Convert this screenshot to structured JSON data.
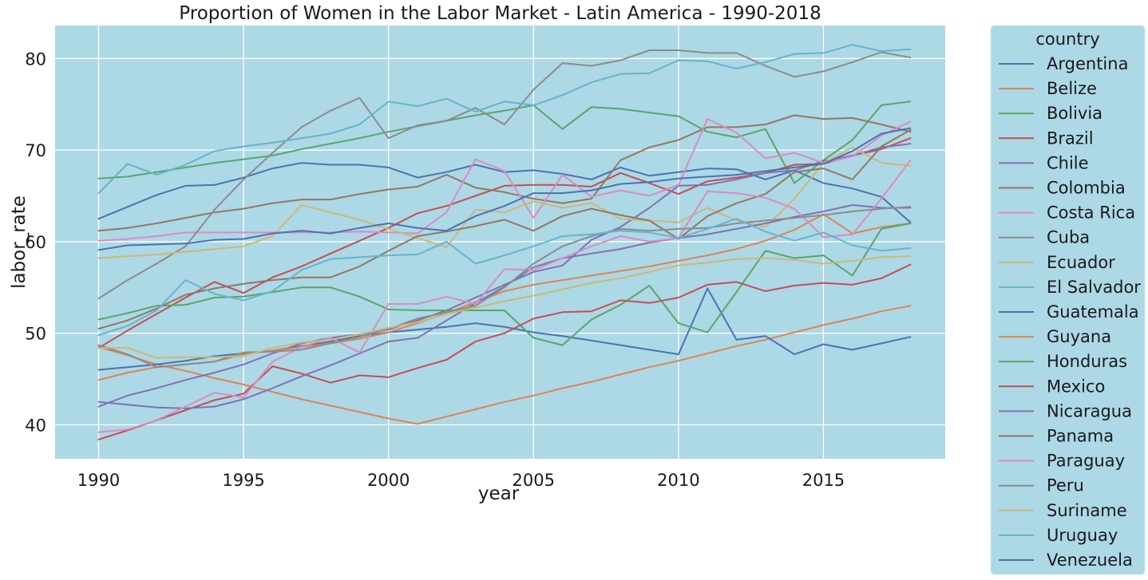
{
  "chart_data": {
    "type": "line",
    "title": "Proportion of Women in the Labor Market - Latin America - 1990-2018",
    "xlabel": "year",
    "ylabel": "labor_rate",
    "xlim": [
      1988.5,
      2019.2
    ],
    "ylim": [
      36.3,
      83.6
    ],
    "x_ticks": [
      1990,
      1995,
      2000,
      2005,
      2010,
      2015
    ],
    "y_ticks": [
      40,
      50,
      60,
      70,
      80
    ],
    "grid": true,
    "background": "#add8e6",
    "legend": {
      "title": "country",
      "position": "outside-right"
    },
    "x": [
      1990,
      1991,
      1992,
      1993,
      1994,
      1995,
      1996,
      1997,
      1998,
      1999,
      2000,
      2001,
      2002,
      2003,
      2004,
      2005,
      2006,
      2007,
      2008,
      2009,
      2010,
      2011,
      2012,
      2013,
      2014,
      2015,
      2016,
      2017,
      2018
    ],
    "series": [
      {
        "name": "Argentina",
        "color": "#4c72b0",
        "values": [
          62.5,
          63.8,
          65.1,
          66.1,
          66.2,
          67.0,
          68.0,
          68.6,
          68.4,
          68.4,
          68.1,
          67.0,
          67.6,
          68.4,
          67.6,
          67.8,
          67.4,
          66.8,
          68.1,
          67.2,
          67.6,
          68.0,
          67.9,
          66.8,
          67.8,
          66.4,
          65.8,
          64.9,
          62.1
        ]
      },
      {
        "name": "Belize",
        "color": "#dd8452",
        "values": [
          48.5,
          47.6,
          46.6,
          45.9,
          45.1,
          44.4,
          43.6,
          42.8,
          42.1,
          41.4,
          40.7,
          40.1,
          40.9,
          41.7,
          42.5,
          43.2,
          44.0,
          44.7,
          45.5,
          46.3,
          47.0,
          47.8,
          48.6,
          49.3,
          50.1,
          50.9,
          51.6,
          52.4,
          53.0
        ]
      },
      {
        "name": "Bolivia",
        "color": "#55a868",
        "values": [
          66.9,
          67.1,
          67.6,
          68.1,
          68.6,
          69.0,
          69.4,
          70.1,
          70.7,
          71.3,
          72.0,
          72.6,
          73.2,
          73.8,
          74.3,
          74.9,
          72.3,
          74.7,
          74.5,
          74.1,
          73.7,
          72.0,
          71.4,
          72.3,
          66.4,
          68.9,
          71.1,
          74.9,
          75.3
        ]
      },
      {
        "name": "Brazil",
        "color": "#c44e52",
        "values": [
          48.4,
          50.3,
          52.1,
          53.9,
          55.6,
          54.4,
          56.1,
          57.3,
          58.7,
          60.1,
          61.5,
          63.1,
          63.9,
          65.0,
          66.1,
          66.2,
          66.2,
          66.0,
          67.5,
          66.4,
          65.2,
          66.6,
          67.0,
          67.5,
          68.4,
          68.5,
          69.4,
          70.1,
          71.3
        ]
      },
      {
        "name": "Chile",
        "color": "#8172b3",
        "values": [
          42.0,
          43.2,
          44.0,
          44.9,
          45.7,
          46.6,
          47.8,
          48.9,
          49.5,
          49.9,
          50.4,
          51.4,
          52.5,
          53.9,
          55.3,
          56.7,
          57.4,
          60.2,
          61.6,
          63.7,
          66.1,
          66.2,
          66.8,
          67.5,
          67.8,
          68.8,
          69.4,
          70.3,
          70.7
        ]
      },
      {
        "name": "Colombia",
        "color": "#937860",
        "values": [
          61.2,
          61.5,
          62.0,
          62.6,
          63.2,
          63.6,
          64.2,
          64.6,
          64.6,
          65.2,
          65.7,
          66.0,
          67.3,
          65.9,
          65.4,
          64.7,
          64.2,
          64.7,
          68.9,
          70.3,
          71.1,
          72.5,
          72.5,
          72.8,
          73.8,
          73.4,
          73.5,
          72.8,
          72.0
        ]
      },
      {
        "name": "Costa Rica",
        "color": "#da8bc3",
        "values": [
          60.1,
          60.3,
          60.6,
          61.0,
          61.0,
          61.0,
          61.0,
          61.0,
          61.0,
          61.1,
          61.0,
          60.9,
          63.2,
          69.0,
          67.7,
          62.6,
          67.3,
          64.9,
          65.6,
          65.0,
          66.2,
          73.4,
          71.9,
          69.1,
          69.7,
          68.6,
          69.3,
          71.6,
          73.1
        ]
      },
      {
        "name": "Cuba",
        "color": "#8c8c8c",
        "values": [
          53.8,
          55.8,
          57.6,
          59.5,
          63.5,
          66.8,
          69.7,
          72.5,
          74.3,
          75.7,
          71.3,
          72.7,
          73.2,
          74.6,
          72.8,
          76.6,
          79.5,
          79.2,
          79.8,
          80.9,
          80.9,
          80.6,
          80.6,
          79.2,
          78.0,
          78.6,
          79.6,
          80.7,
          80.1
        ]
      },
      {
        "name": "Ecuador",
        "color": "#ccb974",
        "values": [
          58.2,
          58.4,
          58.6,
          58.9,
          59.2,
          59.5,
          60.6,
          64.0,
          63.2,
          62.4,
          61.4,
          60.4,
          59.4,
          63.5,
          63.2,
          64.4,
          63.7,
          64.2,
          62.5,
          62.3,
          62.1,
          63.7,
          62.3,
          61.6,
          64.7,
          68.6,
          70.3,
          68.6,
          68.3
        ]
      },
      {
        "name": "El Salvador",
        "color": "#64b5cd",
        "values": [
          65.3,
          68.5,
          67.3,
          68.4,
          69.9,
          70.4,
          70.8,
          71.3,
          71.8,
          72.8,
          75.3,
          74.8,
          75.6,
          74.2,
          75.3,
          74.9,
          76.0,
          77.4,
          78.3,
          78.4,
          79.8,
          79.7,
          78.9,
          79.6,
          80.5,
          80.6,
          81.5,
          80.8,
          81.0
        ]
      },
      {
        "name": "Guatemala",
        "color": "#4c72b0",
        "values": [
          46.0,
          46.3,
          46.6,
          47.0,
          47.5,
          47.8,
          48.1,
          48.6,
          49.1,
          49.7,
          50.1,
          50.4,
          50.7,
          51.1,
          50.7,
          50.1,
          49.7,
          49.2,
          48.7,
          48.2,
          47.7,
          54.9,
          49.3,
          49.7,
          47.7,
          48.8,
          48.2,
          48.9,
          49.6
        ]
      },
      {
        "name": "Guyana",
        "color": "#dd8452",
        "values": [
          44.9,
          45.7,
          46.3,
          46.6,
          46.9,
          47.7,
          48.1,
          48.5,
          48.9,
          49.4,
          50.1,
          51.1,
          52.2,
          53.4,
          54.6,
          55.3,
          55.8,
          56.3,
          56.8,
          57.3,
          57.9,
          58.5,
          59.2,
          60.1,
          61.3,
          63.0,
          60.9,
          61.6,
          62.0
        ]
      },
      {
        "name": "Honduras",
        "color": "#55a868",
        "values": [
          51.5,
          52.2,
          53.0,
          53.1,
          53.9,
          54.0,
          54.5,
          55.0,
          55.0,
          54.0,
          52.6,
          52.5,
          52.5,
          52.5,
          52.5,
          49.5,
          48.7,
          51.5,
          53.1,
          55.2,
          51.1,
          50.1,
          54.5,
          59.0,
          58.2,
          58.5,
          56.3,
          61.4,
          62.0
        ]
      },
      {
        "name": "Mexico",
        "color": "#c44e52",
        "values": [
          38.4,
          39.4,
          40.5,
          41.6,
          42.7,
          43.4,
          46.4,
          45.6,
          44.6,
          45.4,
          45.2,
          46.2,
          47.1,
          49.1,
          50.0,
          51.6,
          52.3,
          52.4,
          53.6,
          53.3,
          53.9,
          55.3,
          55.6,
          54.6,
          55.2,
          55.5,
          55.3,
          56.0,
          57.5
        ]
      },
      {
        "name": "Nicaragua",
        "color": "#8172b3",
        "values": [
          42.5,
          42.2,
          41.9,
          41.8,
          42.0,
          42.8,
          44.0,
          45.3,
          46.5,
          47.8,
          49.1,
          49.5,
          51.4,
          53.3,
          55.1,
          57.2,
          58.2,
          58.7,
          59.2,
          59.9,
          60.4,
          60.8,
          61.4,
          62.0,
          62.7,
          63.3,
          64.0,
          63.7,
          63.7
        ]
      },
      {
        "name": "Panama",
        "color": "#937860",
        "values": [
          50.5,
          51.4,
          52.7,
          54.2,
          54.9,
          55.4,
          55.8,
          56.1,
          56.1,
          57.3,
          59.0,
          60.6,
          61.1,
          61.7,
          62.4,
          61.2,
          62.8,
          63.6,
          62.9,
          62.3,
          60.3,
          62.8,
          64.2,
          65.2,
          67.6,
          68.0,
          66.8,
          70.4,
          72.2
        ]
      },
      {
        "name": "Paraguay",
        "color": "#da8bc3",
        "values": [
          39.2,
          39.5,
          40.5,
          42.0,
          43.5,
          43.0,
          46.9,
          48.5,
          49.5,
          47.9,
          53.2,
          53.2,
          54.0,
          53.2,
          57.0,
          56.9,
          58.2,
          59.5,
          60.6,
          60.0,
          60.4,
          65.5,
          65.3,
          64.8,
          63.6,
          60.5,
          60.8,
          64.7,
          68.9
        ]
      },
      {
        "name": "Peru",
        "color": "#8c8c8c",
        "values": [
          48.7,
          47.7,
          46.3,
          46.6,
          46.9,
          47.9,
          48.0,
          48.2,
          48.9,
          49.6,
          50.5,
          51.6,
          52.3,
          53.0,
          55.0,
          57.6,
          59.5,
          60.6,
          61.4,
          61.2,
          61.4,
          61.5,
          62.0,
          62.3,
          62.6,
          62.9,
          63.3,
          63.6,
          63.8
        ]
      },
      {
        "name": "Suriname",
        "color": "#ccb974",
        "values": [
          48.4,
          48.4,
          47.3,
          47.4,
          47.4,
          47.5,
          48.4,
          49.0,
          49.3,
          49.9,
          50.6,
          51.2,
          52.1,
          52.8,
          53.5,
          54.1,
          54.8,
          55.5,
          56.0,
          56.7,
          57.4,
          57.7,
          58.1,
          58.2,
          58.0,
          57.6,
          57.9,
          58.3,
          58.4
        ]
      },
      {
        "name": "Uruguay",
        "color": "#64b5cd",
        "values": [
          49.8,
          50.8,
          52.5,
          55.8,
          54.3,
          53.6,
          54.6,
          56.9,
          58.1,
          58.3,
          58.5,
          58.6,
          60.0,
          57.6,
          58.5,
          59.5,
          60.6,
          60.8,
          61.2,
          61.0,
          60.4,
          61.4,
          62.5,
          61.1,
          60.1,
          61.0,
          59.6,
          59.0,
          59.3
        ]
      },
      {
        "name": "Venezuela",
        "color": "#4c72b0",
        "values": [
          59.1,
          59.6,
          59.7,
          59.8,
          60.2,
          60.3,
          60.9,
          61.2,
          60.9,
          61.5,
          62.0,
          61.5,
          61.2,
          62.8,
          63.9,
          65.3,
          65.3,
          65.6,
          66.3,
          66.5,
          66.9,
          67.1,
          67.3,
          67.7,
          68.1,
          68.5,
          69.9,
          71.8,
          72.4
        ]
      }
    ]
  }
}
